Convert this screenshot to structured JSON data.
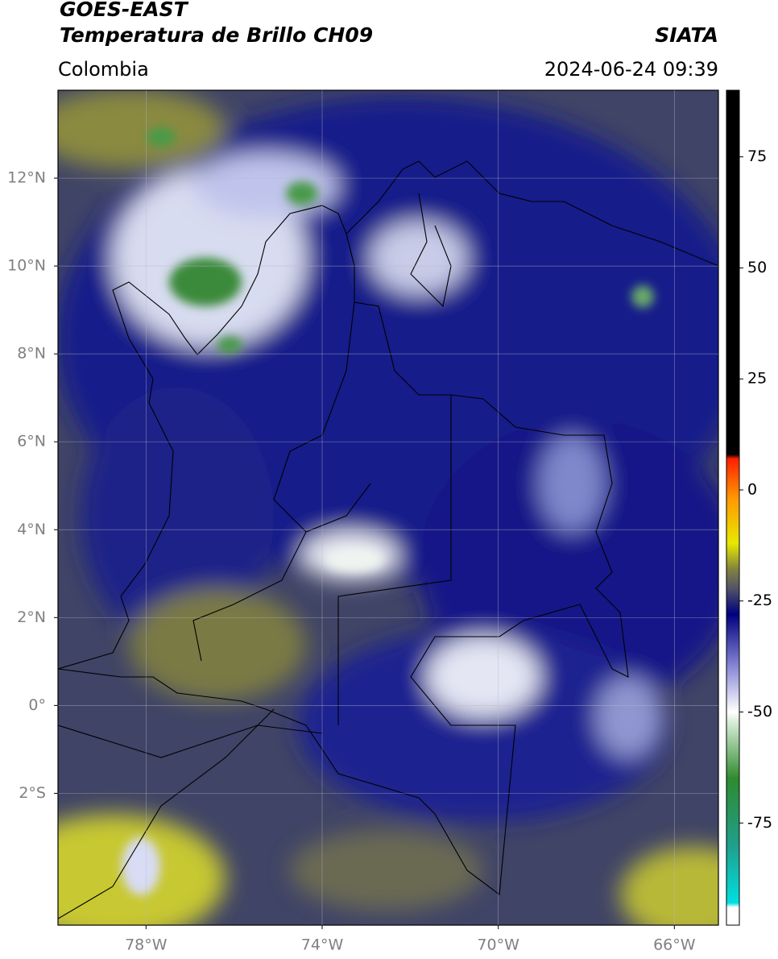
{
  "header": {
    "title": "GOES-EAST",
    "subtitle": "Temperatura de Brillo CH09",
    "source": "SIATA",
    "region": "Colombia",
    "datetime": "2024-06-24 09:39"
  },
  "map": {
    "xlim": [
      -80,
      -65
    ],
    "ylim": [
      -5,
      14
    ],
    "grid": true,
    "xticks": [
      {
        "value": -78,
        "label": "78°W"
      },
      {
        "value": -74,
        "label": "74°W"
      },
      {
        "value": -70,
        "label": "70°W"
      },
      {
        "value": -66,
        "label": "66°W"
      }
    ],
    "yticks": [
      {
        "value": 12,
        "label": "12°N"
      },
      {
        "value": 10,
        "label": "10°N"
      },
      {
        "value": 8,
        "label": "8°N"
      },
      {
        "value": 6,
        "label": "6°N"
      },
      {
        "value": 4,
        "label": "4°N"
      },
      {
        "value": 2,
        "label": "2°N"
      },
      {
        "value": 0,
        "label": "0°"
      },
      {
        "value": -2,
        "label": "2°S"
      }
    ]
  },
  "colorbar": {
    "lim": [
      -98,
      90
    ],
    "ticks": [
      75,
      50,
      25,
      0,
      -25,
      -50,
      -75
    ],
    "colors": [
      {
        "value": -98,
        "color": "#ffffff"
      },
      {
        "value": -94,
        "color": "#ffffff"
      },
      {
        "value": -93,
        "color": "#00e0e0"
      },
      {
        "value": -80,
        "color": "#1f9f8c"
      },
      {
        "value": -65,
        "color": "#2e8b2e"
      },
      {
        "value": -52,
        "color": "#dcefdc"
      },
      {
        "value": -50,
        "color": "#ffffff"
      },
      {
        "value": -40,
        "color": "#8a8ad6"
      },
      {
        "value": -28,
        "color": "#000080"
      },
      {
        "value": -22,
        "color": "#555566"
      },
      {
        "value": -18,
        "color": "#808040"
      },
      {
        "value": -12,
        "color": "#e8e800"
      },
      {
        "value": -2,
        "color": "#ff9900"
      },
      {
        "value": 7,
        "color": "#ff2000"
      },
      {
        "value": 8,
        "color": "#000000"
      },
      {
        "value": 90,
        "color": "#000000"
      }
    ]
  }
}
